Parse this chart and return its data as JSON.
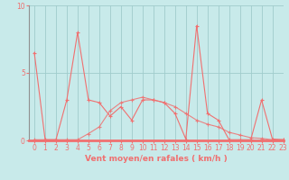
{
  "x": [
    0,
    1,
    2,
    3,
    4,
    5,
    6,
    7,
    8,
    9,
    10,
    11,
    12,
    13,
    14,
    15,
    16,
    17,
    18,
    19,
    20,
    21,
    22,
    23
  ],
  "y_gusts": [
    6.5,
    0.05,
    0.05,
    3.0,
    8.0,
    3.0,
    2.8,
    1.8,
    2.5,
    1.5,
    3.0,
    3.0,
    2.8,
    2.0,
    0.1,
    8.5,
    2.0,
    1.5,
    0.05,
    0.05,
    0.05,
    3.0,
    0.1,
    0.05
  ],
  "y_avg": [
    0.05,
    0.05,
    0.05,
    0.05,
    0.05,
    0.5,
    1.0,
    2.2,
    2.8,
    3.0,
    3.2,
    3.0,
    2.8,
    2.5,
    2.0,
    1.5,
    1.2,
    1.0,
    0.6,
    0.4,
    0.2,
    0.15,
    0.05,
    0.05
  ],
  "xlabel": "Vent moyen/en rafales ( km/h )",
  "ylim": [
    0,
    10
  ],
  "xlim": [
    -0.5,
    23
  ],
  "yticks": [
    0,
    5,
    10
  ],
  "xticks": [
    0,
    1,
    2,
    3,
    4,
    5,
    6,
    7,
    8,
    9,
    10,
    11,
    12,
    13,
    14,
    15,
    16,
    17,
    18,
    19,
    20,
    21,
    22,
    23
  ],
  "line_color": "#f07070",
  "bg_color": "#c8eaea",
  "grid_color": "#a0cccc",
  "marker": "+",
  "marker_size": 3,
  "linewidth": 0.8,
  "xlabel_fontsize": 6.5,
  "tick_fontsize": 5.5
}
